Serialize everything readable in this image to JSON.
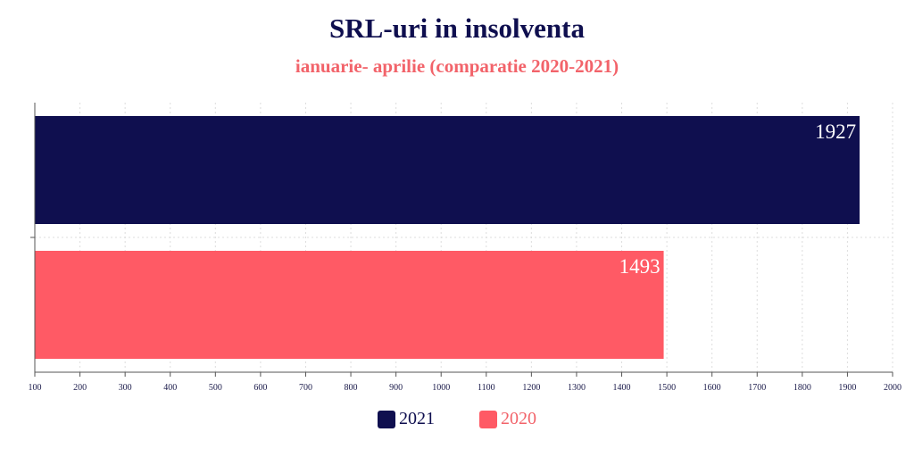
{
  "chart_data": {
    "type": "bar",
    "orientation": "horizontal",
    "title": "SRL-uri in insolventa",
    "subtitle": "ianuarie- aprilie (comparatie 2020-2021)",
    "categories": [
      "2021",
      "2020"
    ],
    "values": [
      1927,
      1493
    ],
    "colors": [
      "#0f0f4f",
      "#ff5a65"
    ],
    "xlim": [
      100,
      2000
    ],
    "xticks": [
      100,
      200,
      300,
      400,
      500,
      600,
      700,
      800,
      900,
      1000,
      1100,
      1200,
      1300,
      1400,
      1500,
      1600,
      1700,
      1800,
      1900,
      2000
    ],
    "grid": true,
    "legend_position": "bottom",
    "legend": [
      {
        "label": "2021",
        "color": "#0f0f4f",
        "text_color": "#0f0f4f"
      },
      {
        "label": "2020",
        "color": "#ff5a65",
        "text_color": "#f2636a"
      }
    ]
  }
}
